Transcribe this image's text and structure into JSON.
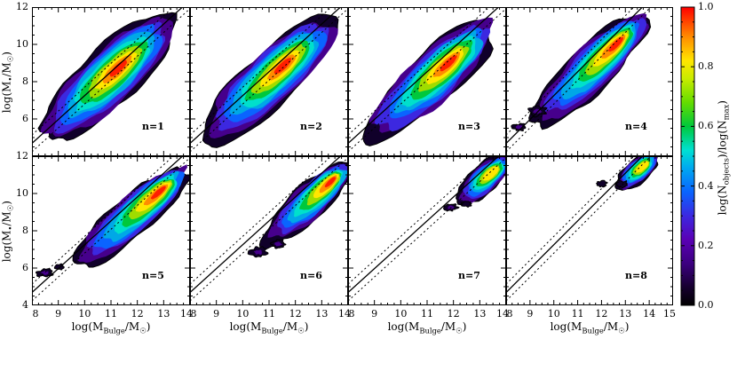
{
  "figure": {
    "background": "#ffffff"
  },
  "chart_data": {
    "type": "heatmap",
    "description": "2x4 grid of galaxy density maps: black hole mass vs bulge mass for n=1..8, with rainbow density colorbar and linear fit with dotted scatter lines",
    "xlabel": "log(M_{Bulge}/M_{☉})",
    "ylabel": "log(M_{•}/M_{☉})",
    "y_range": [
      4,
      12
    ],
    "y_major_ticks": [
      4,
      6,
      8,
      10,
      12
    ],
    "y_tick_labels": [
      "4",
      "6",
      "8",
      "10",
      "12"
    ],
    "x_major_ticks": [
      8,
      9,
      10,
      11,
      12,
      13,
      14
    ],
    "x_major_ticks_wide": [
      8,
      9,
      10,
      11,
      12,
      13,
      14,
      15
    ],
    "x_tick_labels": [
      "8",
      "9",
      "10",
      "11",
      "12",
      "13",
      "14"
    ],
    "x_tick_labels_wide": [
      "8",
      "9",
      "10",
      "11",
      "12",
      "13",
      "14",
      "15"
    ],
    "fit_line": {
      "slope": 1.28,
      "intercept": -5.55,
      "scatter": 0.45
    },
    "contour_colors": [
      "#10002a",
      "#46008c",
      "#3c28e0",
      "#0a64ff",
      "#00a8e6",
      "#00e0cc",
      "#00c83c",
      "#a0dc00",
      "#ffe600",
      "#ff8c00",
      "#ff1e00"
    ],
    "contour_scales": [
      1.0,
      0.92,
      0.84,
      0.75,
      0.66,
      0.57,
      0.48,
      0.39,
      0.3,
      0.21,
      0.13
    ],
    "colormap_stops": [
      [
        0.0,
        "#000000"
      ],
      [
        0.06,
        "#16002e"
      ],
      [
        0.14,
        "#3c0080"
      ],
      [
        0.22,
        "#5a00b4"
      ],
      [
        0.3,
        "#3c28e0"
      ],
      [
        0.38,
        "#0a64ff"
      ],
      [
        0.46,
        "#00a8f0"
      ],
      [
        0.52,
        "#00e0d2"
      ],
      [
        0.6,
        "#00c83c"
      ],
      [
        0.68,
        "#64dc00"
      ],
      [
        0.76,
        "#c8ec00"
      ],
      [
        0.82,
        "#ffe600"
      ],
      [
        0.9,
        "#ff8c00"
      ],
      [
        1.0,
        "#ff0000"
      ]
    ],
    "colorbar": {
      "label": "log(N_{objects})/log(N_{max})",
      "range": [
        0,
        1
      ],
      "tick_values": [
        0,
        0.2,
        0.4,
        0.6,
        0.8,
        1.0
      ],
      "tick_labels": [
        "0.0",
        "0.2",
        "0.4",
        "0.6",
        "0.8",
        "1.0"
      ]
    },
    "panels": [
      {
        "label": "n=1",
        "row": 0,
        "col": 0,
        "x_range": [
          8,
          14
        ],
        "blob": {
          "x1": 8.4,
          "y1": 4.9,
          "x2": 13.3,
          "y2": 11.4,
          "width": 1.5,
          "bias": 0.2,
          "levels": 11
        },
        "islands": []
      },
      {
        "label": "n=2",
        "row": 0,
        "col": 1,
        "x_range": [
          8,
          14
        ],
        "blob": {
          "x1": 8.6,
          "y1": 5.0,
          "x2": 13.4,
          "y2": 11.3,
          "width": 1.4,
          "bias": 0.25,
          "levels": 11
        },
        "islands": []
      },
      {
        "label": "n=3",
        "row": 0,
        "col": 2,
        "x_range": [
          8,
          14
        ],
        "blob": {
          "x1": 8.8,
          "y1": 5.05,
          "x2": 13.5,
          "y2": 11.2,
          "width": 1.35,
          "bias": 0.32,
          "levels": 11
        },
        "islands": []
      },
      {
        "label": "n=4",
        "row": 0,
        "col": 3,
        "x_range": [
          8,
          15
        ],
        "blob": {
          "x1": 9.2,
          "y1": 5.7,
          "x2": 13.8,
          "y2": 11.5,
          "width": 1.15,
          "bias": 0.55,
          "levels": 11
        },
        "islands": [
          {
            "x": 8.55,
            "y": 5.55,
            "rx": 0.28,
            "ry": 0.22
          },
          {
            "x": 9.3,
            "y": 6.4,
            "rx": 0.34,
            "ry": 0.26
          }
        ]
      },
      {
        "label": "n=5",
        "row": 1,
        "col": 0,
        "x_range": [
          8,
          14
        ],
        "blob": {
          "x1": 9.7,
          "y1": 6.2,
          "x2": 13.9,
          "y2": 11.4,
          "width": 1.05,
          "bias": 0.55,
          "levels": 11
        },
        "islands": [
          {
            "x": 8.5,
            "y": 5.75,
            "rx": 0.28,
            "ry": 0.2
          },
          {
            "x": 9.05,
            "y": 6.05,
            "rx": 0.18,
            "ry": 0.14
          }
        ]
      },
      {
        "label": "n=6",
        "row": 1,
        "col": 1,
        "x_range": [
          8,
          14
        ],
        "blob": {
          "x1": 10.9,
          "y1": 7.4,
          "x2": 14.0,
          "y2": 11.5,
          "width": 0.92,
          "bias": 0.65,
          "levels": 11
        },
        "islands": [
          {
            "x": 10.6,
            "y": 6.85,
            "rx": 0.3,
            "ry": 0.24
          },
          {
            "x": 11.35,
            "y": 7.3,
            "rx": 0.26,
            "ry": 0.2
          }
        ]
      },
      {
        "label": "n=7",
        "row": 1,
        "col": 2,
        "x_range": [
          8,
          14
        ],
        "blob": {
          "x1": 12.2,
          "y1": 9.6,
          "x2": 14.1,
          "y2": 11.9,
          "width": 0.75,
          "bias": 0.4,
          "levels": 9
        },
        "islands": [
          {
            "x": 11.9,
            "y": 9.25,
            "rx": 0.24,
            "ry": 0.18
          },
          {
            "x": 12.5,
            "y": 9.45,
            "rx": 0.18,
            "ry": 0.14
          }
        ]
      },
      {
        "label": "n=8",
        "row": 1,
        "col": 3,
        "x_range": [
          8,
          15
        ],
        "blob": {
          "x1": 12.7,
          "y1": 10.3,
          "x2": 14.3,
          "y2": 12.1,
          "width": 0.62,
          "bias": 0.35,
          "levels": 9
        },
        "islands": [
          {
            "x": 12.0,
            "y": 10.5,
            "rx": 0.2,
            "ry": 0.16
          },
          {
            "x": 12.85,
            "y": 10.5,
            "rx": 0.22,
            "ry": 0.18
          }
        ]
      }
    ]
  }
}
